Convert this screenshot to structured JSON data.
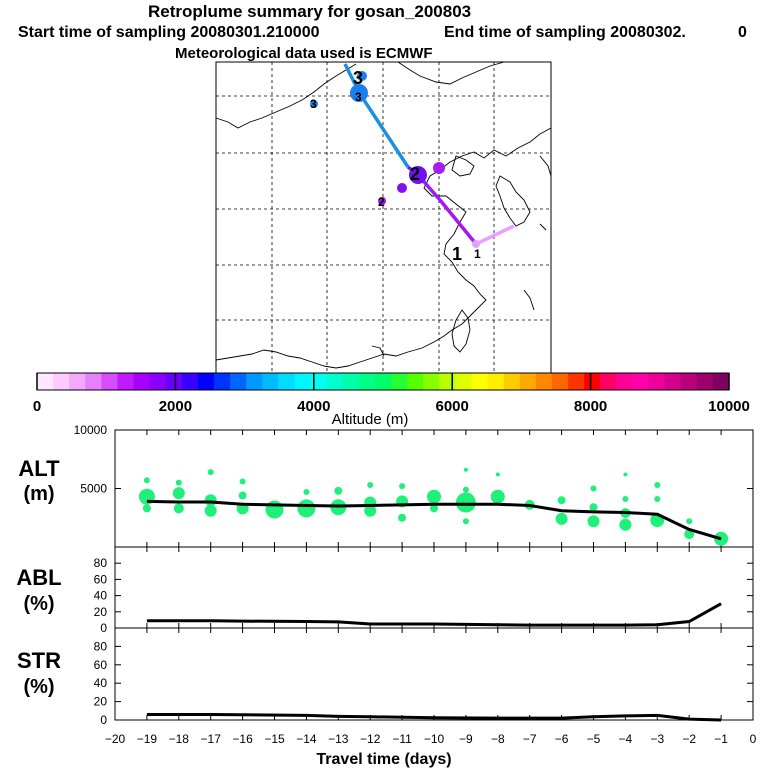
{
  "header": {
    "title": "Retroplume summary for gosan_200803",
    "start_label": "Start time of sampling 20080301.210000",
    "end_label": "End time of sampling 20080302.",
    "end_value": "0",
    "met_label": "Meteorological data used is ECMWF"
  },
  "chart_data": [
    {
      "type": "map",
      "name": "trajectory-map",
      "trajectory_labels": [
        {
          "label": "1",
          "altitude": 500
        },
        {
          "label": "2",
          "altitude": 2000
        },
        {
          "label": "3",
          "altitude": 3000
        }
      ]
    },
    {
      "type": "colorbar",
      "xlabel": "Altitude (m)",
      "ticks": [
        0,
        2000,
        4000,
        6000,
        8000,
        10000
      ],
      "range": [
        0,
        10000
      ],
      "colors": [
        "#ffe6ff",
        "#ffccff",
        "#f5a8ff",
        "#e680ff",
        "#d64dff",
        "#c21aff",
        "#a800ff",
        "#8a00ff",
        "#6a00ff",
        "#3a00ff",
        "#0000ff",
        "#0033ff",
        "#0066ff",
        "#0099ff",
        "#00bbff",
        "#00ddff",
        "#00f5ff",
        "#00ffee",
        "#00ffcc",
        "#00ffaa",
        "#00ff88",
        "#00ff66",
        "#22ff33",
        "#55ff00",
        "#88ff00",
        "#b8ff00",
        "#ddff00",
        "#ffff00",
        "#ffee00",
        "#ffcc00",
        "#ffaa00",
        "#ff8800",
        "#ff6600",
        "#ff3300",
        "#ff0000",
        "#ff0066",
        "#ff0099",
        "#ff00aa",
        "#ee0099",
        "#d4008c",
        "#b8007a",
        "#9e006b",
        "#800060"
      ]
    },
    {
      "type": "scatter",
      "name": "altitude-panel",
      "ylabel": "ALT",
      "yunit": "(m)",
      "ylim": [
        0,
        10000
      ],
      "yticks": [
        5000,
        10000
      ],
      "line": {
        "x": [
          -19,
          -18,
          -17,
          -16,
          -15,
          -14,
          -13,
          -12,
          -11,
          -10,
          -9,
          -8,
          -7,
          -6,
          -5,
          -4,
          -3,
          -2,
          -1
        ],
        "y": [
          3900,
          3850,
          3850,
          3650,
          3600,
          3550,
          3500,
          3550,
          3600,
          3650,
          3650,
          3650,
          3550,
          3100,
          3000,
          2950,
          2800,
          1500,
          700
        ]
      },
      "points": [
        {
          "x": -19,
          "y": 5700,
          "s": 3
        },
        {
          "x": -19,
          "y": 4300,
          "s": 8
        },
        {
          "x": -19,
          "y": 3300,
          "s": 4
        },
        {
          "x": -18,
          "y": 5500,
          "s": 3
        },
        {
          "x": -18,
          "y": 4600,
          "s": 6
        },
        {
          "x": -18,
          "y": 3300,
          "s": 5
        },
        {
          "x": -17,
          "y": 6400,
          "s": 3
        },
        {
          "x": -17,
          "y": 4000,
          "s": 6
        },
        {
          "x": -17,
          "y": 3100,
          "s": 6
        },
        {
          "x": -16,
          "y": 5600,
          "s": 3
        },
        {
          "x": -16,
          "y": 4400,
          "s": 4
        },
        {
          "x": -16,
          "y": 3300,
          "s": 6
        },
        {
          "x": -15,
          "y": 3200,
          "s": 9
        },
        {
          "x": -14,
          "y": 4700,
          "s": 3
        },
        {
          "x": -14,
          "y": 3300,
          "s": 9
        },
        {
          "x": -13,
          "y": 4800,
          "s": 4
        },
        {
          "x": -13,
          "y": 3400,
          "s": 8
        },
        {
          "x": -12,
          "y": 5300,
          "s": 3
        },
        {
          "x": -12,
          "y": 3800,
          "s": 6
        },
        {
          "x": -12,
          "y": 3100,
          "s": 6
        },
        {
          "x": -11,
          "y": 5200,
          "s": 3
        },
        {
          "x": -11,
          "y": 3900,
          "s": 6
        },
        {
          "x": -11,
          "y": 2500,
          "s": 4
        },
        {
          "x": -10,
          "y": 4300,
          "s": 7
        },
        {
          "x": -10,
          "y": 3300,
          "s": 4
        },
        {
          "x": -9,
          "y": 6600,
          "s": 2
        },
        {
          "x": -9,
          "y": 4900,
          "s": 3
        },
        {
          "x": -9,
          "y": 3800,
          "s": 10
        },
        {
          "x": -9,
          "y": 2200,
          "s": 3
        },
        {
          "x": -8,
          "y": 6200,
          "s": 2
        },
        {
          "x": -8,
          "y": 4300,
          "s": 7
        },
        {
          "x": -7,
          "y": 3600,
          "s": 5
        },
        {
          "x": -6,
          "y": 4000,
          "s": 4
        },
        {
          "x": -6,
          "y": 2400,
          "s": 6
        },
        {
          "x": -5,
          "y": 5000,
          "s": 3
        },
        {
          "x": -5,
          "y": 3400,
          "s": 4
        },
        {
          "x": -5,
          "y": 2200,
          "s": 6
        },
        {
          "x": -4,
          "y": 6200,
          "s": 2
        },
        {
          "x": -4,
          "y": 4100,
          "s": 3
        },
        {
          "x": -4,
          "y": 2900,
          "s": 5
        },
        {
          "x": -4,
          "y": 1900,
          "s": 6
        },
        {
          "x": -3,
          "y": 5300,
          "s": 3
        },
        {
          "x": -3,
          "y": 4100,
          "s": 3
        },
        {
          "x": -3,
          "y": 2300,
          "s": 7
        },
        {
          "x": -2,
          "y": 2200,
          "s": 3
        },
        {
          "x": -2,
          "y": 1100,
          "s": 5
        },
        {
          "x": -1,
          "y": 700,
          "s": 7
        }
      ]
    },
    {
      "type": "line",
      "name": "abl-panel",
      "ylabel": "ABL",
      "yunit": "(%)",
      "ylim": [
        0,
        100
      ],
      "yticks": [
        0,
        20,
        40,
        60,
        80
      ],
      "x": [
        -19,
        -17,
        -16,
        -14,
        -13,
        -12,
        -10,
        -8,
        -7,
        -5,
        -4,
        -3,
        -2,
        -1
      ],
      "y": [
        9,
        9,
        8.5,
        8,
        7.5,
        5,
        5,
        4,
        3.5,
        3.5,
        3.5,
        4,
        8,
        30
      ]
    },
    {
      "type": "line",
      "name": "str-panel",
      "ylabel": "STR",
      "yunit": "(%)",
      "ylim": [
        0,
        100
      ],
      "yticks": [
        0,
        20,
        40,
        60,
        80
      ],
      "x": [
        -19,
        -17,
        -14,
        -13,
        -12,
        -10,
        -8,
        -7,
        -6,
        -5,
        -4,
        -3,
        -2,
        -1
      ],
      "y": [
        6,
        6,
        5,
        4,
        3.5,
        2.5,
        2,
        2,
        2,
        3.5,
        4.5,
        5,
        1,
        0
      ],
      "xlabel": "Travel time (days)",
      "xticks": [
        -20,
        -19,
        -18,
        -17,
        -16,
        -15,
        -14,
        -13,
        -12,
        -11,
        -10,
        -9,
        -8,
        -7,
        -6,
        -5,
        -4,
        -3,
        -2,
        -1,
        0
      ]
    }
  ]
}
